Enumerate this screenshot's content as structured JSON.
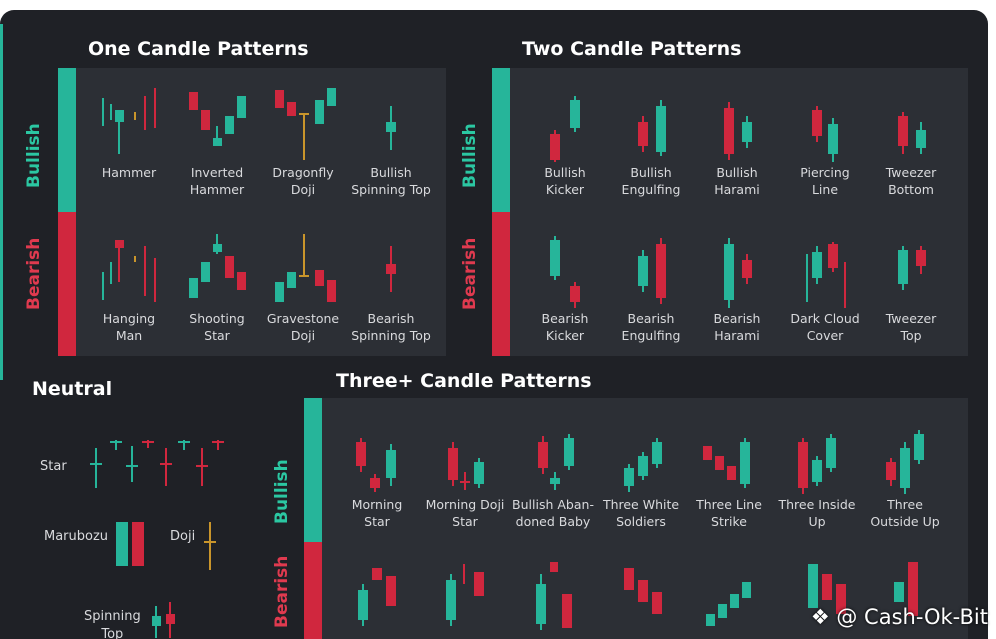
{
  "colors": {
    "bull": "#26b59a",
    "bear": "#d0273e",
    "doji": "#c9952b",
    "bg": "#1f2126",
    "panel": "#2c2f35"
  },
  "one_candle": {
    "title": "One Candle Patterns",
    "bullish_label": "Bullish",
    "bearish_label": "Bearish",
    "bullish": [
      "Hammer",
      "Inverted\nHammer",
      "Dragonfly\nDoji",
      "Bullish\nSpinning Top"
    ],
    "bearish": [
      "Hanging\nMan",
      "Shooting\nStar",
      "Gravestone\nDoji",
      "Bearish\nSpinning Top"
    ]
  },
  "two_candle": {
    "title": "Two Candle Patterns",
    "bullish_label": "Bullish",
    "bearish_label": "Bearish",
    "bullish": [
      "Bullish\nKicker",
      "Bullish\nEngulfing",
      "Bullish\nHarami",
      "Piercing\nLine",
      "Tweezer\nBottom"
    ],
    "bearish": [
      "Bearish\nKicker",
      "Bearish\nEngulfing",
      "Bearish\nHarami",
      "Dark Cloud\nCover",
      "Tweezer\nTop"
    ]
  },
  "neutral": {
    "title": "Neutral",
    "items": [
      "Star",
      "Marubozu",
      "Doji",
      "Spinning\nTop"
    ]
  },
  "three_candle": {
    "title": "Three+ Candle Patterns",
    "bullish_label": "Bullish",
    "bearish_label": "Bearish",
    "bullish": [
      "Morning\nStar",
      "Morning Doji\nStar",
      "Bullish Aban-\ndoned Baby",
      "Three White\nSoldiers",
      "Three Line\nStrike",
      "Three Inside\nUp",
      "Three\nOutside Up"
    ]
  },
  "watermark": {
    "icon": "binance-diamond-icon",
    "text": "@ Cash-Ok-Bit"
  }
}
